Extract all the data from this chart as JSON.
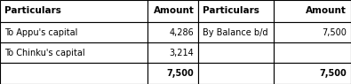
{
  "columns": [
    "Particulars",
    "Amount",
    "Particulars",
    "Amount"
  ],
  "rows": [
    [
      "To Appu's capital",
      "4,286",
      "By Balance b/d",
      "7,500"
    ],
    [
      "To Chinku's capital",
      "3,214",
      "",
      ""
    ],
    [
      "",
      "7,500",
      "",
      "7,500"
    ]
  ],
  "col_bounds": [
    0.0,
    0.42,
    0.565,
    0.78,
    1.0
  ],
  "row_bounds": [
    1.0,
    0.74,
    0.49,
    0.25,
    0.0
  ],
  "bg_color": "#ffffff",
  "border_color": "#000000",
  "font_size_header": 7.5,
  "font_size_body": 7.0
}
